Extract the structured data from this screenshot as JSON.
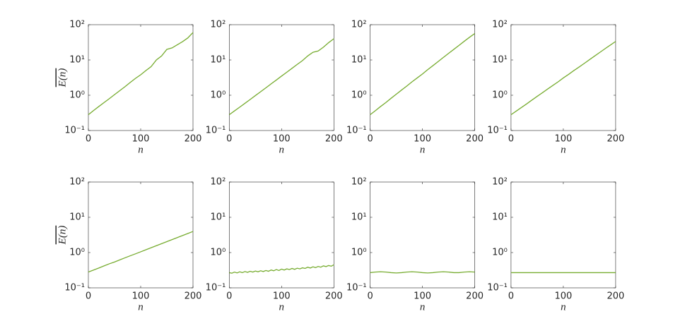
{
  "chart_data": [
    {
      "type": "line",
      "log_y": true,
      "color": "#77ac30",
      "xlabel": "n",
      "ylabel": "E(n)",
      "x": [
        0,
        10,
        20,
        30,
        40,
        50,
        60,
        70,
        80,
        90,
        100,
        110,
        120,
        130,
        140,
        150,
        160,
        170,
        180,
        190,
        200
      ],
      "values": [
        0.28,
        0.37,
        0.48,
        0.62,
        0.8,
        1.04,
        1.35,
        1.75,
        2.3,
        3.0,
        3.8,
        5.0,
        6.5,
        10,
        13,
        20,
        22,
        27,
        33,
        42,
        60
      ],
      "xlim": [
        0,
        200
      ],
      "xticks": [
        0,
        100,
        200
      ],
      "ylim": [
        0.1,
        100
      ],
      "yticks": [
        {
          "value": 0.1,
          "label": "10⁻¹"
        },
        {
          "value": 1,
          "label": "10⁰"
        },
        {
          "value": 10,
          "label": "10¹"
        },
        {
          "value": 100,
          "label": "10²"
        }
      ]
    },
    {
      "type": "line",
      "log_y": true,
      "color": "#77ac30",
      "xlabel": "n",
      "x": [
        0,
        10,
        20,
        30,
        40,
        50,
        60,
        70,
        80,
        90,
        100,
        110,
        120,
        130,
        140,
        150,
        160,
        170,
        180,
        190,
        200
      ],
      "values": [
        0.28,
        0.36,
        0.46,
        0.59,
        0.76,
        0.98,
        1.26,
        1.62,
        2.1,
        2.7,
        3.5,
        4.5,
        5.8,
        7.5,
        9.6,
        13,
        16.5,
        18,
        23,
        31,
        40
      ],
      "xlim": [
        0,
        200
      ],
      "xticks": [
        0,
        100,
        200
      ],
      "ylim": [
        0.1,
        100
      ],
      "yticks": [
        {
          "value": 0.1,
          "label": "10⁻¹"
        },
        {
          "value": 1,
          "label": "10⁰"
        },
        {
          "value": 10,
          "label": "10¹"
        },
        {
          "value": 100,
          "label": "10²"
        }
      ]
    },
    {
      "type": "line",
      "log_y": true,
      "color": "#77ac30",
      "xlabel": "n",
      "x": [
        0,
        10,
        20,
        30,
        40,
        50,
        60,
        70,
        80,
        90,
        100,
        110,
        120,
        130,
        140,
        150,
        160,
        170,
        180,
        190,
        200
      ],
      "values": [
        0.28,
        0.365,
        0.48,
        0.62,
        0.82,
        1.07,
        1.4,
        1.82,
        2.4,
        3.1,
        4.0,
        5.3,
        6.9,
        9.0,
        11.8,
        15.4,
        20,
        26,
        34,
        44,
        56
      ],
      "xlim": [
        0,
        200
      ],
      "xticks": [
        0,
        100,
        200
      ],
      "ylim": [
        0.1,
        100
      ],
      "yticks": [
        {
          "value": 0.1,
          "label": "10⁻¹"
        },
        {
          "value": 1,
          "label": "10⁰"
        },
        {
          "value": 10,
          "label": "10¹"
        },
        {
          "value": 100,
          "label": "10²"
        }
      ]
    },
    {
      "type": "line",
      "log_y": true,
      "color": "#77ac30",
      "xlabel": "n",
      "x": [
        0,
        10,
        20,
        30,
        40,
        50,
        60,
        70,
        80,
        90,
        100,
        110,
        120,
        130,
        140,
        150,
        160,
        170,
        180,
        190,
        200
      ],
      "values": [
        0.28,
        0.356,
        0.45,
        0.57,
        0.73,
        0.93,
        1.18,
        1.5,
        1.9,
        2.4,
        3.1,
        3.9,
        5.0,
        6.3,
        8.0,
        10.2,
        13,
        16.5,
        21,
        26.5,
        33.5
      ],
      "xlim": [
        0,
        200
      ],
      "xticks": [
        0,
        100,
        200
      ],
      "ylim": [
        0.1,
        100
      ],
      "yticks": [
        {
          "value": 0.1,
          "label": "10⁻¹"
        },
        {
          "value": 1,
          "label": "10⁰"
        },
        {
          "value": 10,
          "label": "10¹"
        },
        {
          "value": 100,
          "label": "10²"
        }
      ]
    },
    {
      "type": "line",
      "log_y": true,
      "color": "#77ac30",
      "xlabel": "n",
      "ylabel": "E(n)",
      "x": [
        0,
        10,
        20,
        30,
        40,
        50,
        60,
        70,
        80,
        90,
        100,
        110,
        120,
        130,
        140,
        150,
        160,
        170,
        180,
        190,
        200
      ],
      "values": [
        0.28,
        0.32,
        0.365,
        0.42,
        0.48,
        0.54,
        0.62,
        0.71,
        0.81,
        0.92,
        1.05,
        1.2,
        1.37,
        1.57,
        1.79,
        2.04,
        2.33,
        2.66,
        3.04,
        3.47,
        3.97
      ],
      "xlim": [
        0,
        200
      ],
      "xticks": [
        0,
        100,
        200
      ],
      "ylim": [
        0.1,
        100
      ],
      "yticks": [
        {
          "value": 0.1,
          "label": "10⁻¹"
        },
        {
          "value": 1,
          "label": "10⁰"
        },
        {
          "value": 10,
          "label": "10¹"
        },
        {
          "value": 100,
          "label": "10²"
        }
      ]
    },
    {
      "type": "line",
      "log_y": true,
      "color": "#77ac30",
      "xlabel": "n",
      "x": [
        0,
        5,
        10,
        15,
        20,
        25,
        30,
        35,
        40,
        45,
        50,
        55,
        60,
        65,
        70,
        75,
        80,
        85,
        90,
        95,
        100,
        105,
        110,
        115,
        120,
        125,
        130,
        135,
        140,
        145,
        150,
        155,
        160,
        165,
        170,
        175,
        180,
        185,
        190,
        195,
        200
      ],
      "values": [
        0.27,
        0.26,
        0.28,
        0.265,
        0.285,
        0.27,
        0.29,
        0.275,
        0.295,
        0.28,
        0.3,
        0.285,
        0.305,
        0.29,
        0.31,
        0.295,
        0.32,
        0.305,
        0.33,
        0.31,
        0.34,
        0.32,
        0.345,
        0.33,
        0.355,
        0.335,
        0.36,
        0.345,
        0.37,
        0.355,
        0.385,
        0.365,
        0.395,
        0.375,
        0.405,
        0.385,
        0.42,
        0.4,
        0.43,
        0.41,
        0.45
      ],
      "xlim": [
        0,
        200
      ],
      "xticks": [
        0,
        100,
        200
      ],
      "ylim": [
        0.1,
        100
      ],
      "yticks": [
        {
          "value": 0.1,
          "label": "10⁻¹"
        },
        {
          "value": 1,
          "label": "10⁰"
        },
        {
          "value": 10,
          "label": "10¹"
        },
        {
          "value": 100,
          "label": "10²"
        }
      ]
    },
    {
      "type": "line",
      "log_y": true,
      "color": "#77ac30",
      "xlabel": "n",
      "x": [
        0,
        10,
        20,
        30,
        40,
        50,
        60,
        70,
        80,
        90,
        100,
        110,
        120,
        130,
        140,
        150,
        160,
        170,
        180,
        190,
        200
      ],
      "values": [
        0.27,
        0.28,
        0.285,
        0.28,
        0.27,
        0.265,
        0.27,
        0.28,
        0.285,
        0.28,
        0.27,
        0.265,
        0.27,
        0.28,
        0.285,
        0.28,
        0.27,
        0.27,
        0.28,
        0.285,
        0.28
      ],
      "xlim": [
        0,
        200
      ],
      "xticks": [
        0,
        100,
        200
      ],
      "ylim": [
        0.1,
        100
      ],
      "yticks": [
        {
          "value": 0.1,
          "label": "10⁻¹"
        },
        {
          "value": 1,
          "label": "10⁰"
        },
        {
          "value": 10,
          "label": "10¹"
        },
        {
          "value": 100,
          "label": "10²"
        }
      ]
    },
    {
      "type": "line",
      "log_y": true,
      "color": "#77ac30",
      "xlabel": "n",
      "x": [
        0,
        200
      ],
      "values": [
        0.27,
        0.27
      ],
      "xlim": [
        0,
        200
      ],
      "xticks": [
        0,
        100,
        200
      ],
      "ylim": [
        0.1,
        100
      ],
      "yticks": [
        {
          "value": 0.1,
          "label": "10⁻¹"
        },
        {
          "value": 1,
          "label": "10⁰"
        },
        {
          "value": 10,
          "label": "10¹"
        },
        {
          "value": 100,
          "label": "10²"
        }
      ]
    }
  ]
}
